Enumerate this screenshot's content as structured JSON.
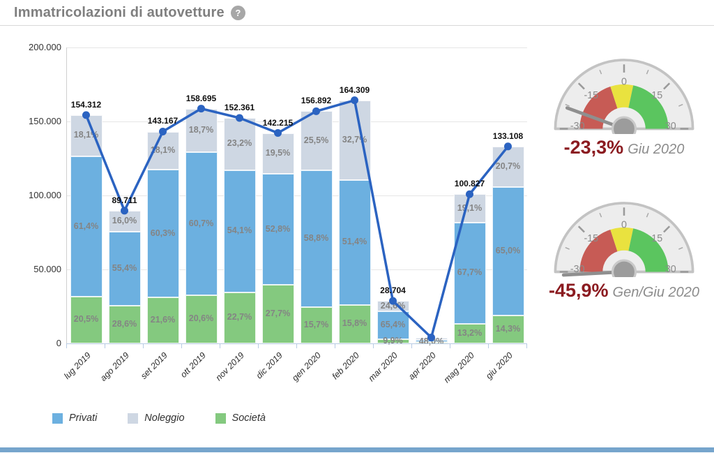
{
  "page": {
    "title": "Immatricolazioni di autovetture",
    "help_icon": "?",
    "bottom_bar_color": "#76a5cc"
  },
  "chart_data": {
    "type": "stacked-bar-with-line",
    "title": "Immatricolazioni di autovetture",
    "ylim": [
      0,
      200000
    ],
    "ytick_labels": [
      "200.000",
      "150.000",
      "100.000",
      "50.000",
      "0"
    ],
    "grid": true,
    "legend_position": "bottom-left",
    "colors": {
      "privati": "#6cb0e0",
      "noleggio": "#ced7e3",
      "societa": "#84c97f",
      "line": "#2b63c1"
    },
    "legend": [
      {
        "key": "privati",
        "label": "Privati"
      },
      {
        "key": "noleggio",
        "label": "Noleggio"
      },
      {
        "key": "societa",
        "label": "Società"
      }
    ],
    "months": [
      {
        "label": "lug 2019",
        "total": 154312,
        "total_label": "154.312",
        "societa_pct": 20.5,
        "societa_label": "20,5%",
        "privati_pct": 61.4,
        "privati_label": "61,4%",
        "noleggio_pct": 18.1,
        "noleggio_label": "18,1%"
      },
      {
        "label": "ago 2019",
        "total": 89711,
        "total_label": "89.711",
        "societa_pct": 28.6,
        "societa_label": "28,6%",
        "privati_pct": 55.4,
        "privati_label": "55,4%",
        "noleggio_pct": 16.0,
        "noleggio_label": "16,0%"
      },
      {
        "label": "set 2019",
        "total": 143167,
        "total_label": "143.167",
        "societa_pct": 21.6,
        "societa_label": "21,6%",
        "privati_pct": 60.3,
        "privati_label": "60,3%",
        "noleggio_pct": 18.1,
        "noleggio_label": "18,1%"
      },
      {
        "label": "ott 2019",
        "total": 158695,
        "total_label": "158.695",
        "societa_pct": 20.6,
        "societa_label": "20,6%",
        "privati_pct": 60.7,
        "privati_label": "60,7%",
        "noleggio_pct": 18.7,
        "noleggio_label": "18,7%"
      },
      {
        "label": "nov 2019",
        "total": 152361,
        "total_label": "152.361",
        "societa_pct": 22.7,
        "societa_label": "22,7%",
        "privati_pct": 54.1,
        "privati_label": "54,1%",
        "noleggio_pct": 23.2,
        "noleggio_label": "23,2%"
      },
      {
        "label": "dic 2019",
        "total": 142215,
        "total_label": "142.215",
        "societa_pct": 27.7,
        "societa_label": "27,7%",
        "privati_pct": 52.8,
        "privati_label": "52,8%",
        "noleggio_pct": 19.5,
        "noleggio_label": "19,5%"
      },
      {
        "label": "gen 2020",
        "total": 156892,
        "total_label": "156.892",
        "societa_pct": 15.7,
        "societa_label": "15,7%",
        "privati_pct": 58.8,
        "privati_label": "58,8%",
        "noleggio_pct": 25.5,
        "noleggio_label": "25,5%"
      },
      {
        "label": "feb 2020",
        "total": 164309,
        "total_label": "164.309",
        "societa_pct": 15.8,
        "societa_label": "15,8%",
        "privati_pct": 51.4,
        "privati_label": "51,4%",
        "noleggio_pct": 32.7,
        "noleggio_label": "32,7%"
      },
      {
        "label": "mar 2020",
        "total": 28704,
        "total_label": "28.704",
        "societa_pct": 9.9,
        "societa_label": "9,9%",
        "privati_pct": 65.4,
        "privati_label": "65,4%",
        "noleggio_pct": 24.6,
        "noleggio_label": "24,6%"
      },
      {
        "label": "apr 2020",
        "total": 4000,
        "total_label": null,
        "societa_pct": 0,
        "societa_label": null,
        "privati_pct": 48.0,
        "privati_label": "48,0%",
        "noleggio_pct": 52.0,
        "noleggio_label": null
      },
      {
        "label": "mag 2020",
        "total": 100827,
        "total_label": "100.827",
        "societa_pct": 13.2,
        "societa_label": "13,2%",
        "privati_pct": 67.7,
        "privati_label": "67,7%",
        "noleggio_pct": 19.1,
        "noleggio_label": "19,1%"
      },
      {
        "label": "giu 2020",
        "total": 133108,
        "total_label": "133.108",
        "societa_pct": 14.3,
        "societa_label": "14,3%",
        "privati_pct": 65.0,
        "privati_label": "65,0%",
        "noleggio_pct": 20.7,
        "noleggio_label": "20,7%"
      }
    ]
  },
  "gauges": [
    {
      "value": -23.3,
      "value_label": "-23,3%",
      "period_label": "Giu 2020",
      "min": -30,
      "max": 30,
      "tick_values": [
        -30,
        -15,
        0,
        15,
        30
      ],
      "tick_labels": [
        "-30",
        "-15",
        "0",
        "15",
        "30"
      ],
      "minor_tick_values": [
        -22.5,
        -7.5,
        7.5,
        22.5
      ],
      "bands": [
        {
          "from": -30,
          "to": -6,
          "color": "#c75b55"
        },
        {
          "from": -6,
          "to": 4,
          "color": "#e9e23f"
        },
        {
          "from": 4,
          "to": 30,
          "color": "#5bc55f"
        }
      ]
    },
    {
      "value": -45.9,
      "value_label": "-45,9%",
      "period_label": "Gen/Giu 2020",
      "min": -30,
      "max": 30,
      "tick_values": [
        -30,
        -15,
        0,
        15,
        30
      ],
      "tick_labels": [
        "-30",
        "-15",
        "0",
        "15",
        "30"
      ],
      "minor_tick_values": [
        -22.5,
        -7.5,
        7.5,
        22.5
      ],
      "bands": [
        {
          "from": -30,
          "to": -6,
          "color": "#c75b55"
        },
        {
          "from": -6,
          "to": 4,
          "color": "#e9e23f"
        },
        {
          "from": 4,
          "to": 30,
          "color": "#5bc55f"
        }
      ]
    }
  ]
}
